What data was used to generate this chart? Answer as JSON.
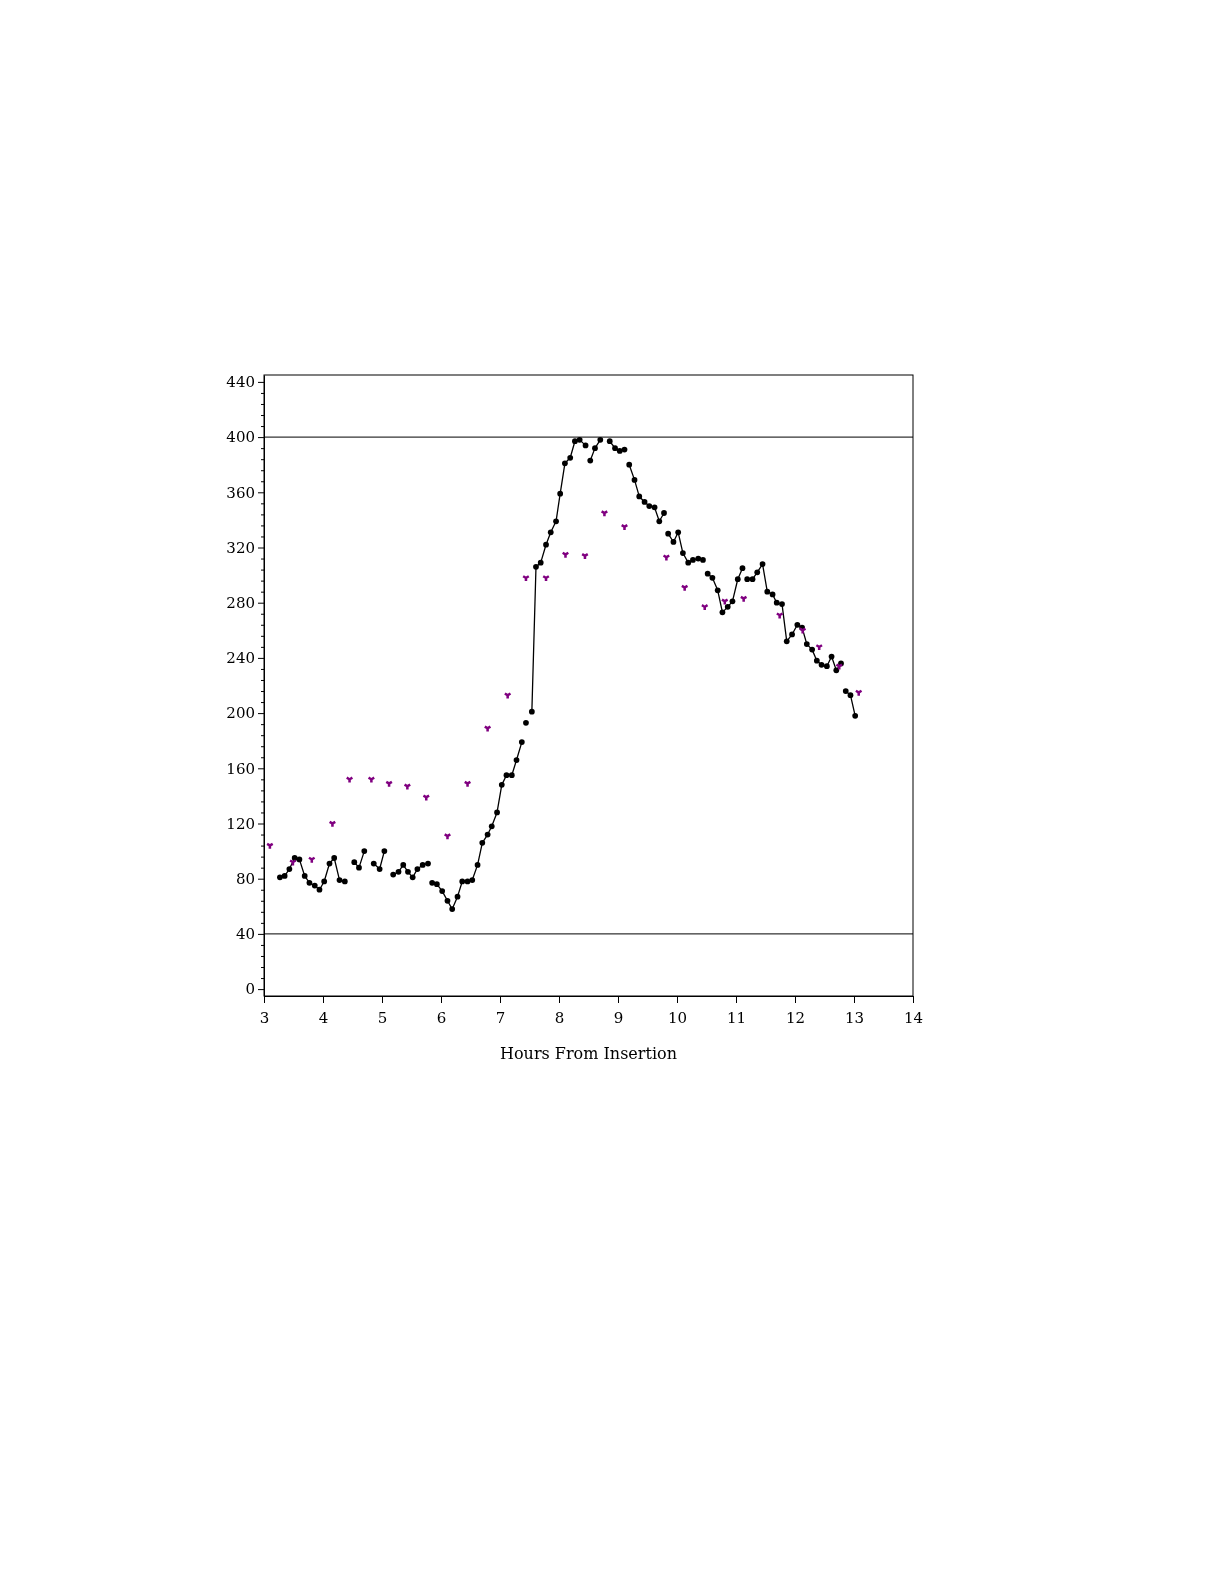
{
  "chart_data": {
    "type": "line",
    "xlabel": "Hours From Insertion",
    "xlim": [
      3,
      14
    ],
    "xticks": [
      3,
      4,
      5,
      6,
      7,
      8,
      9,
      10,
      11,
      12,
      13,
      14
    ],
    "ylim": [
      -5,
      445
    ],
    "yticks": [
      0,
      {
        "value": 8,
        "label": null
      },
      {
        "value": 16,
        "label": null
      },
      {
        "value": 24,
        "label": null
      },
      {
        "value": 32,
        "label": null
      },
      40,
      {
        "value": 48,
        "label": null
      },
      {
        "value": 56,
        "label": null
      },
      {
        "value": 64,
        "label": null
      },
      {
        "value": 72,
        "label": null
      },
      80,
      {
        "value": 88,
        "label": null
      },
      {
        "value": 96,
        "label": null
      },
      {
        "value": 104,
        "label": null
      },
      {
        "value": 112,
        "label": null
      },
      120,
      {
        "value": 128,
        "label": null
      },
      {
        "value": 136,
        "label": null
      },
      {
        "value": 144,
        "label": null
      },
      {
        "value": 152,
        "label": null
      },
      160,
      {
        "value": 168,
        "label": null
      },
      {
        "value": 176,
        "label": null
      },
      {
        "value": 184,
        "label": null
      },
      {
        "value": 192,
        "label": null
      },
      200,
      {
        "value": 208,
        "label": null
      },
      {
        "value": 216,
        "label": null
      },
      {
        "value": 224,
        "label": null
      },
      {
        "value": 232,
        "label": null
      },
      240,
      {
        "value": 248,
        "label": null
      },
      {
        "value": 256,
        "label": null
      },
      {
        "value": 264,
        "label": null
      },
      {
        "value": 272,
        "label": null
      },
      280,
      {
        "value": 288,
        "label": null
      },
      {
        "value": 296,
        "label": null
      },
      {
        "value": 304,
        "label": null
      },
      {
        "value": 312,
        "label": null
      },
      320,
      {
        "value": 328,
        "label": null
      },
      {
        "value": 336,
        "label": null
      },
      {
        "value": 344,
        "label": null
      },
      {
        "value": 352,
        "label": null
      },
      360,
      {
        "value": 368,
        "label": null
      },
      {
        "value": 376,
        "label": null
      },
      {
        "value": 384,
        "label": null
      },
      {
        "value": 392,
        "label": null
      },
      400,
      {
        "value": 408,
        "label": null
      },
      {
        "value": 416,
        "label": null
      },
      {
        "value": 424,
        "label": null
      },
      {
        "value": 432,
        "label": null
      },
      440
    ],
    "grid": false,
    "ref_lines": [
      {
        "axis": "y",
        "value": 400,
        "label": null,
        "color": "#000000"
      },
      {
        "axis": "y",
        "value": 40,
        "label": null,
        "color": "#000000"
      }
    ],
    "series": [
      {
        "color": "#000000",
        "marker": "circle",
        "x": [
          3.27,
          3.35,
          3.43,
          3.52,
          3.6,
          3.69,
          3.77,
          3.86,
          3.94,
          4.02,
          4.11,
          4.19,
          4.28,
          4.37,
          4.45,
          4.53,
          4.61,
          4.7,
          4.78,
          4.86,
          4.96,
          5.04,
          5.12,
          5.19,
          5.28,
          5.36,
          5.44,
          5.52,
          5.6,
          5.69,
          5.78,
          5.82,
          5.85,
          5.93,
          6.02,
          6.11,
          6.19,
          6.28,
          6.36,
          6.45,
          6.53,
          6.62,
          6.7,
          6.79,
          6.86,
          6.95,
          7.03,
          7.11,
          7.2,
          7.28,
          7.37,
          7.4,
          7.44,
          7.49,
          7.54,
          7.61,
          7.69,
          7.78,
          7.86,
          7.95,
          8.02,
          8.1,
          8.19,
          8.27,
          8.35,
          8.45,
          8.49,
          8.53,
          8.61,
          8.7,
          8.78,
          8.86,
          8.95,
          9.03,
          9.11,
          9.15,
          9.19,
          9.28,
          9.36,
          9.45,
          9.53,
          9.62,
          9.7,
          9.78,
          9.82,
          9.85,
          9.94,
          10.02,
          10.1,
          10.19,
          10.27,
          10.36,
          10.44,
          10.48,
          10.52,
          10.6,
          10.69,
          10.77,
          10.86,
          10.94,
          11.03,
          11.11,
          11.15,
          11.19,
          11.28,
          11.36,
          11.45,
          11.53,
          11.62,
          11.69,
          11.78,
          11.86,
          11.95,
          12.04,
          12.12,
          12.2,
          12.29,
          12.37,
          12.45,
          12.54,
          12.62,
          12.7,
          12.78,
          12.82,
          12.86,
          12.94,
          13.02
        ],
        "values": [
          81,
          82,
          87,
          95,
          94,
          82,
          77,
          75,
          72,
          78,
          91,
          95,
          79,
          78,
          null,
          92,
          88,
          100,
          null,
          91,
          87,
          100,
          null,
          83,
          85,
          90,
          85,
          81,
          87,
          90,
          91,
          null,
          77,
          76,
          71,
          64,
          58,
          67,
          78,
          78,
          79,
          90,
          106,
          112,
          118,
          128,
          148,
          155,
          155,
          166,
          179,
          null,
          193,
          null,
          201,
          306,
          309,
          322,
          331,
          339,
          359,
          381,
          385,
          397,
          398,
          394,
          null,
          383,
          392,
          398,
          null,
          397,
          392,
          390,
          391,
          null,
          380,
          369,
          357,
          353,
          350,
          349,
          339,
          345,
          null,
          330,
          324,
          331,
          316,
          309,
          311,
          312,
          311,
          null,
          301,
          298,
          289,
          273,
          277,
          281,
          297,
          305,
          null,
          297,
          297,
          302,
          308,
          288,
          286,
          280,
          279,
          252,
          257,
          264,
          262,
          250,
          246,
          238,
          235,
          234,
          241,
          231,
          236,
          null,
          216,
          213,
          198
        ]
      },
      {
        "type": "scatter",
        "color": "#800080",
        "marker": "star",
        "x": [
          3.1,
          3.49,
          3.81,
          4.16,
          4.45,
          4.82,
          5.12,
          5.43,
          5.75,
          6.11,
          6.45,
          6.79,
          7.13,
          7.44,
          7.78,
          8.11,
          8.44,
          8.77,
          9.11,
          9.82,
          10.13,
          10.47,
          10.81,
          11.13,
          11.74,
          12.13,
          12.41,
          12.75,
          13.08
        ],
        "values": [
          104,
          92,
          94,
          120,
          152,
          152,
          149,
          147,
          139,
          111,
          149,
          189,
          213,
          298,
          298,
          315,
          314,
          345,
          335,
          313,
          291,
          277,
          281,
          283,
          271,
          260,
          248,
          234,
          215
        ]
      }
    ]
  }
}
